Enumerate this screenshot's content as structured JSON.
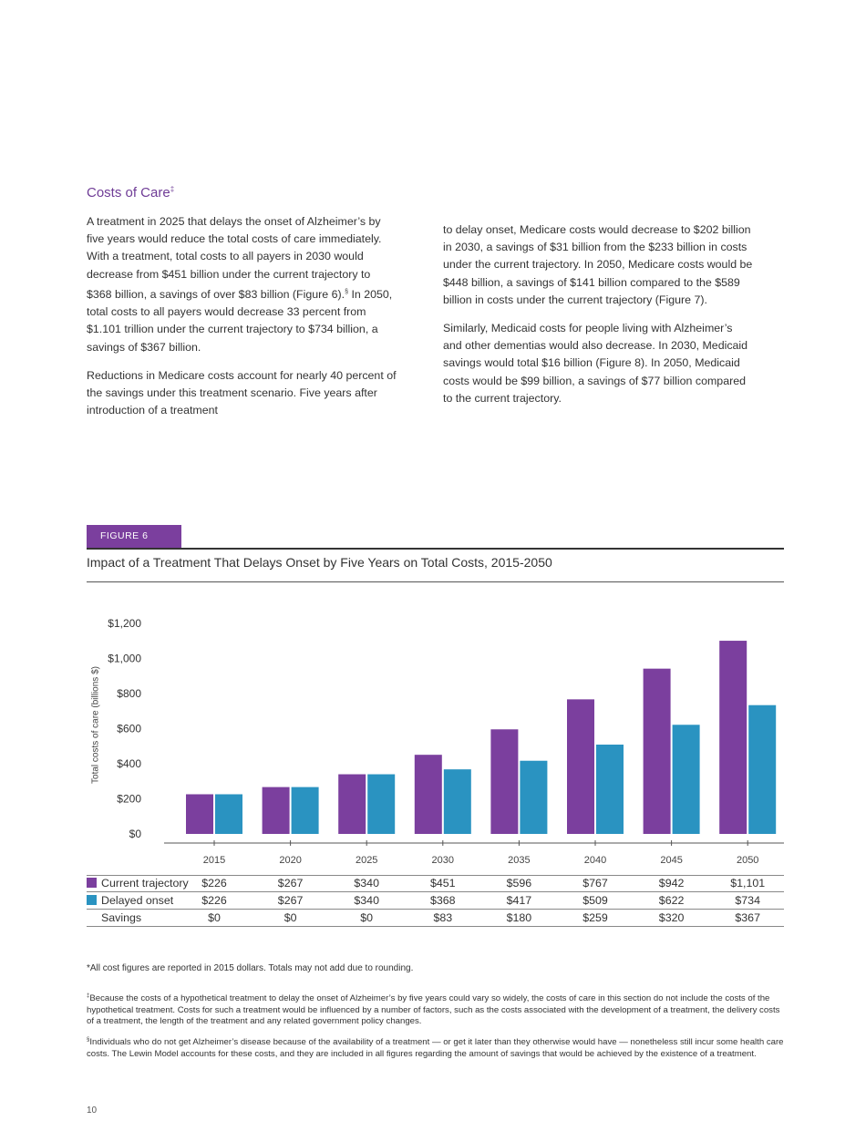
{
  "section": {
    "title": "Costs of Care",
    "title_mark": "‡"
  },
  "left_column": [
    {
      "text": "A treatment in 2025 that delays the onset of Alzheimer’s by five years would reduce the total costs of care immediately. With a treatment, total costs to all payers in 2030 would decrease from $451 billion under the current trajectory to $368 billion, a savings of over $83 billion (Figure 6).",
      "mark": "§",
      "after": " In 2050, total costs to all payers would decrease 33 percent from $1.101 trillion under the current trajectory to $734 billion, a savings of $367 billion."
    },
    {
      "text": "Reductions in Medicare costs account for nearly 40 percent of the savings under this treatment scenario. Five years after introduction of a treatment"
    }
  ],
  "right_column": [
    "to delay onset, Medicare costs would decrease to $202 billion in 2030, a savings of $31 billion from the $233 billion in costs under the current trajectory. In 2050, Medicare costs would be $448 billion, a savings of $141 billion compared to the $589 billion in costs under the current trajectory (Figure 7).",
    "Similarly, Medicaid costs for people living with Alzheimer’s and other dementias would also decrease. In 2030, Medicaid savings would total $16 billion (Figure 8). In 2050, Medicaid costs would be $99 billion, a savings of $77 billion compared to the current trajectory."
  ],
  "figure": {
    "tag": "FIGURE 6",
    "title": "Impact of a Treatment That Delays Onset by Five Years on Total Costs, 2015-2050"
  },
  "chart_data": {
    "type": "bar",
    "title": "Impact of a Treatment That Delays Onset by Five Years on Total Costs, 2015-2050",
    "ylabel": "Total costs of care (billions $)",
    "ylim": [
      0,
      1200
    ],
    "yticks": [
      "$0",
      "$200",
      "$400",
      "$600",
      "$800",
      "$1,000",
      "$1,200"
    ],
    "ytick_values": [
      0,
      200,
      400,
      600,
      800,
      1000,
      1200
    ],
    "grid": false,
    "categories": [
      "2015",
      "2020",
      "2025",
      "2030",
      "2035",
      "2040",
      "2045",
      "2050"
    ],
    "series": [
      {
        "name": "Current trajectory",
        "color": "#7b3f9e",
        "values": [
          226,
          267,
          340,
          451,
          596,
          767,
          942,
          1101
        ],
        "labels": [
          "$226",
          "$267",
          "$340",
          "$451",
          "$596",
          "$767",
          "$942",
          "$1,101"
        ]
      },
      {
        "name": "Delayed onset",
        "color": "#2a93c1",
        "values": [
          226,
          267,
          340,
          368,
          417,
          509,
          622,
          734
        ],
        "labels": [
          "$226",
          "$267",
          "$340",
          "$368",
          "$417",
          "$509",
          "$622",
          "$734"
        ]
      }
    ],
    "savings": {
      "name": "Savings",
      "labels": [
        "$0",
        "$0",
        "$0",
        "$83",
        "$180",
        "$259",
        "$320",
        "$367"
      ]
    }
  },
  "note": "*All cost figures are reported in 2015 dollars. Totals may not add due to rounding.",
  "footnotes": [
    {
      "mark": "‡",
      "text": "Because the costs of a hypothetical treatment to delay the onset of Alzheimer’s by five years could vary so widely, the costs of care in this section do not include the costs of the hypothetical treatment. Costs for such a treatment would be influenced by a number of factors, such as the costs associated with the development of a treatment, the delivery costs of a treatment, the length of the treatment and any related government policy changes."
    },
    {
      "mark": "§",
      "text": "Individuals who do not get Alzheimer’s disease because of the availability of a treatment — or get it later than they otherwise would have — nonetheless still incur some health care costs. The Lewin Model accounts for these costs, and they are included in all figures regarding the amount of savings that would be achieved by the existence of a treatment."
    }
  ],
  "page_number": "10"
}
